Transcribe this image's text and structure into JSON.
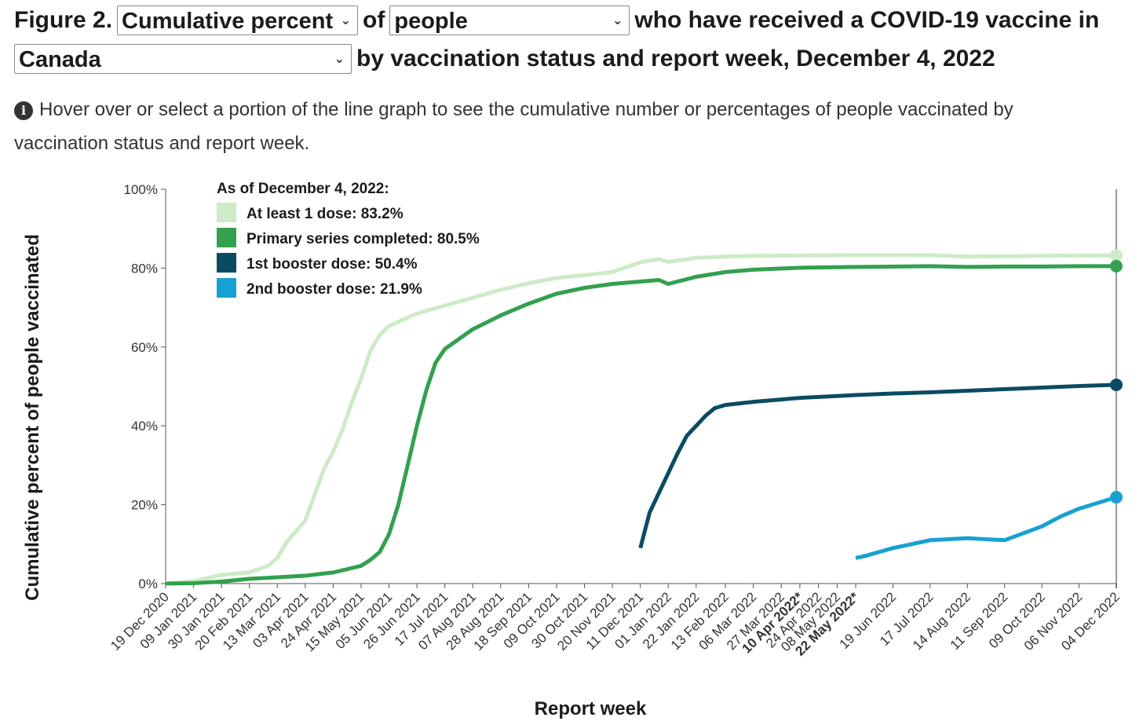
{
  "header": {
    "prefix": "Figure 2.",
    "measure_select": "Cumulative percent",
    "of_text": "of",
    "population_select": "people",
    "middle_text": "who have received a COVID-19 vaccine in",
    "geography_select": "Canada",
    "suffix_text": "by vaccination status and report week, December 4, 2022"
  },
  "info": {
    "text_line1": "Hover over or select a portion of the line graph to see the cumulative number or percentages of people vaccinated by",
    "text_line2": "vaccination status and report week."
  },
  "chart_data": {
    "type": "line",
    "ylabel": "Cumulative percent of people vaccinated",
    "xlabel": "Report week",
    "ylim": [
      0,
      100
    ],
    "yticks": [
      0,
      20,
      40,
      60,
      80,
      100
    ],
    "ytick_labels": [
      "0%",
      "20%",
      "40%",
      "60%",
      "80%",
      "100%"
    ],
    "x_tick_labels": [
      {
        "label": "19 Dec 2020",
        "bold": false
      },
      {
        "label": "09 Jan 2021",
        "bold": false
      },
      {
        "label": "30 Jan 2021",
        "bold": false
      },
      {
        "label": "20 Feb 2021",
        "bold": false
      },
      {
        "label": "13 Mar 2021",
        "bold": false
      },
      {
        "label": "03 Apr 2021",
        "bold": false
      },
      {
        "label": "24 Apr 2021",
        "bold": false
      },
      {
        "label": "15 May 2021",
        "bold": false
      },
      {
        "label": "05 Jun 2021",
        "bold": false
      },
      {
        "label": "26 Jun 2021",
        "bold": false
      },
      {
        "label": "17 Jul 2021",
        "bold": false
      },
      {
        "label": "07 Aug 2021",
        "bold": false
      },
      {
        "label": "28 Aug 2021",
        "bold": false
      },
      {
        "label": "18 Sep 2021",
        "bold": false
      },
      {
        "label": "09 Oct 2021",
        "bold": false
      },
      {
        "label": "30 Oct 2021",
        "bold": false
      },
      {
        "label": "20 Nov 2021",
        "bold": false
      },
      {
        "label": "11 Dec 2021",
        "bold": false
      },
      {
        "label": "01 Jan 2022",
        "bold": false
      },
      {
        "label": "22 Jan 2022",
        "bold": false
      },
      {
        "label": "13 Feb 2022",
        "bold": false
      },
      {
        "label": "06 Mar 2022",
        "bold": false
      },
      {
        "label": "27 Mar 2022",
        "bold": false
      },
      {
        "label": "10 Apr 2022*",
        "bold": true
      },
      {
        "label": "24 Apr 2022",
        "bold": false
      },
      {
        "label": "08 May 2022",
        "bold": false
      },
      {
        "label": "22 May 2022*",
        "bold": true
      },
      {
        "label": "19 Jun 2022",
        "bold": false
      },
      {
        "label": "17 Jul 2022",
        "bold": false
      },
      {
        "label": "14 Aug 2022",
        "bold": false
      },
      {
        "label": "11 Sep 2022",
        "bold": false
      },
      {
        "label": "09 Oct 2022",
        "bold": false
      },
      {
        "label": "06 Nov 2022",
        "bold": false
      },
      {
        "label": "04 Dec 2022",
        "bold": false
      }
    ],
    "legend": {
      "title": "As of December 4, 2022:",
      "position": "top-left"
    },
    "series": [
      {
        "name": "At least 1 dose: 83.2%",
        "color": "#cdebc6",
        "end_marker": true,
        "points": [
          [
            "19 Dec 2020",
            0
          ],
          [
            "09 Jan 2021",
            0.6
          ],
          [
            "30 Jan 2021",
            2.2
          ],
          [
            "20 Feb 2021",
            2.8
          ],
          [
            "06 Mar 2021",
            4.5
          ],
          [
            "13 Mar 2021",
            6.5
          ],
          [
            "20 Mar 2021",
            10.5
          ],
          [
            "03 Apr 2021",
            16
          ],
          [
            "10 Apr 2021",
            22.5
          ],
          [
            "17 Apr 2021",
            29
          ],
          [
            "24 Apr 2021",
            33.5
          ],
          [
            "01 May 2021",
            39
          ],
          [
            "08 May 2021",
            46
          ],
          [
            "15 May 2021",
            52
          ],
          [
            "22 May 2021",
            59
          ],
          [
            "29 May 2021",
            63
          ],
          [
            "05 Jun 2021",
            65.3
          ],
          [
            "26 Jun 2021",
            68.5
          ],
          [
            "17 Jul 2021",
            70.5
          ],
          [
            "07 Aug 2021",
            72.5
          ],
          [
            "28 Aug 2021",
            74.5
          ],
          [
            "18 Sep 2021",
            76.2
          ],
          [
            "09 Oct 2021",
            77.5
          ],
          [
            "30 Oct 2021",
            78.2
          ],
          [
            "20 Nov 2021",
            79
          ],
          [
            "11 Dec 2021",
            81.5
          ],
          [
            "25 Dec 2021",
            82.3
          ],
          [
            "01 Jan 2022",
            81.6
          ],
          [
            "22 Jan 2022",
            82.6
          ],
          [
            "13 Feb 2022",
            82.9
          ],
          [
            "06 Mar 2022",
            83.1
          ],
          [
            "10 Apr 2022*",
            83.2
          ],
          [
            "22 May 2022*",
            83.3
          ],
          [
            "19 Jun 2022",
            83.3
          ],
          [
            "17 Jul 2022",
            83.3
          ],
          [
            "14 Aug 2022",
            82.9
          ],
          [
            "11 Sep 2022",
            83.0
          ],
          [
            "09 Oct 2022",
            83.1
          ],
          [
            "06 Nov 2022",
            83.2
          ],
          [
            "04 Dec 2022",
            83.2
          ]
        ]
      },
      {
        "name": "Primary series completed: 80.5%",
        "color": "#33a04f",
        "end_marker": true,
        "points": [
          [
            "19 Dec 2020",
            0
          ],
          [
            "09 Jan 2021",
            0.1
          ],
          [
            "30 Jan 2021",
            0.5
          ],
          [
            "20 Feb 2021",
            1.2
          ],
          [
            "13 Mar 2021",
            1.6
          ],
          [
            "03 Apr 2021",
            2
          ],
          [
            "24 Apr 2021",
            2.8
          ],
          [
            "15 May 2021",
            4.5
          ],
          [
            "22 May 2021",
            6
          ],
          [
            "29 May 2021",
            8
          ],
          [
            "05 Jun 2021",
            12.5
          ],
          [
            "12 Jun 2021",
            20
          ],
          [
            "19 Jun 2021",
            30
          ],
          [
            "26 Jun 2021",
            40
          ],
          [
            "03 Jul 2021",
            49
          ],
          [
            "10 Jul 2021",
            56
          ],
          [
            "17 Jul 2021",
            59.5
          ],
          [
            "07 Aug 2021",
            64.5
          ],
          [
            "28 Aug 2021",
            68
          ],
          [
            "18 Sep 2021",
            71
          ],
          [
            "09 Oct 2021",
            73.5
          ],
          [
            "30 Oct 2021",
            75
          ],
          [
            "20 Nov 2021",
            76
          ],
          [
            "11 Dec 2021",
            76.6
          ],
          [
            "25 Dec 2021",
            77
          ],
          [
            "01 Jan 2022",
            76
          ],
          [
            "22 Jan 2022",
            77.8
          ],
          [
            "13 Feb 2022",
            79
          ],
          [
            "06 Mar 2022",
            79.6
          ],
          [
            "10 Apr 2022*",
            80.1
          ],
          [
            "22 May 2022*",
            80.3
          ],
          [
            "17 Jul 2022",
            80.5
          ],
          [
            "14 Aug 2022",
            80.3
          ],
          [
            "11 Sep 2022",
            80.4
          ],
          [
            "09 Oct 2022",
            80.4
          ],
          [
            "06 Nov 2022",
            80.5
          ],
          [
            "04 Dec 2022",
            80.5
          ]
        ]
      },
      {
        "name": "1st booster dose: 50.4%",
        "color": "#0b4b62",
        "end_marker": true,
        "points": [
          [
            "11 Dec 2021",
            9
          ],
          [
            "18 Dec 2021",
            18
          ],
          [
            "25 Dec 2021",
            23
          ],
          [
            "08 Jan 2022",
            33
          ],
          [
            "15 Jan 2022",
            37.5
          ],
          [
            "22 Jan 2022",
            40
          ],
          [
            "29 Jan 2022",
            42.5
          ],
          [
            "05 Feb 2022",
            44.5
          ],
          [
            "13 Feb 2022",
            45.3
          ],
          [
            "06 Mar 2022",
            46.1
          ],
          [
            "27 Mar 2022",
            46.7
          ],
          [
            "10 Apr 2022*",
            47.1
          ],
          [
            "22 May 2022*",
            47.8
          ],
          [
            "19 Jun 2022",
            48.2
          ],
          [
            "17 Jul 2022",
            48.5
          ],
          [
            "14 Aug 2022",
            48.9
          ],
          [
            "11 Sep 2022",
            49.3
          ],
          [
            "09 Oct 2022",
            49.7
          ],
          [
            "06 Nov 2022",
            50.1
          ],
          [
            "04 Dec 2022",
            50.4
          ]
        ]
      },
      {
        "name": "2nd booster dose: 21.9%",
        "color": "#17a1d2",
        "end_marker": true,
        "points": [
          [
            "22 May 2022*",
            6.5
          ],
          [
            "29 May 2022",
            7
          ],
          [
            "19 Jun 2022",
            9
          ],
          [
            "17 Jul 2022",
            11
          ],
          [
            "14 Aug 2022",
            11.5
          ],
          [
            "11 Sep 2022",
            11
          ],
          [
            "09 Oct 2022",
            14.5
          ],
          [
            "23 Oct 2022",
            17
          ],
          [
            "06 Nov 2022",
            19
          ],
          [
            "04 Dec 2022",
            21.9
          ]
        ]
      }
    ]
  }
}
